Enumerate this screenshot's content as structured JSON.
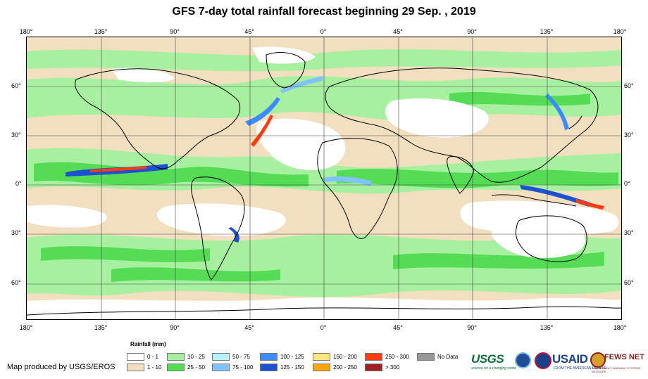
{
  "title": "GFS 7-day total rainfall forecast beginning 29 Sep. , 2019",
  "lon_labels": [
    "180°",
    "135°",
    "90°",
    "45°",
    "0°",
    "45°",
    "90°",
    "135°",
    "180°"
  ],
  "lat_labels": [
    "60°",
    "30°",
    "0°",
    "30°",
    "60°"
  ],
  "legend": {
    "title": "Rainfall (mm)",
    "items": [
      {
        "label": "0 - 1",
        "color": "#ffffff"
      },
      {
        "label": "1 - 10",
        "color": "#f2dfbf"
      },
      {
        "label": "10 - 25",
        "color": "#a6f0a0"
      },
      {
        "label": "25 - 50",
        "color": "#55dc55"
      },
      {
        "label": "50 - 75",
        "color": "#b4f0ff"
      },
      {
        "label": "75 - 100",
        "color": "#82c3ff"
      },
      {
        "label": "100 - 125",
        "color": "#3c8cff"
      },
      {
        "label": "125 - 150",
        "color": "#1e50d2"
      },
      {
        "label": "150 - 200",
        "color": "#ffe682"
      },
      {
        "label": "200 - 250",
        "color": "#ffa500"
      },
      {
        "label": "250 - 300",
        "color": "#ff3c14"
      },
      {
        "label": "> 300",
        "color": "#a01e1e"
      },
      {
        "label": "No Data",
        "color": "#969696"
      }
    ]
  },
  "credit": "Map produced by USGS/EROS",
  "logos": {
    "usgs": "USGS",
    "usgs_tagline": "science for a changing world",
    "usaid": "USAID",
    "usaid_tagline": "FROM THE AMERICAN PEOPLE",
    "fews": "FEWS NET",
    "fews_tagline": "FAMINE EARLY WARNING SYSTEMS NETWORK"
  }
}
